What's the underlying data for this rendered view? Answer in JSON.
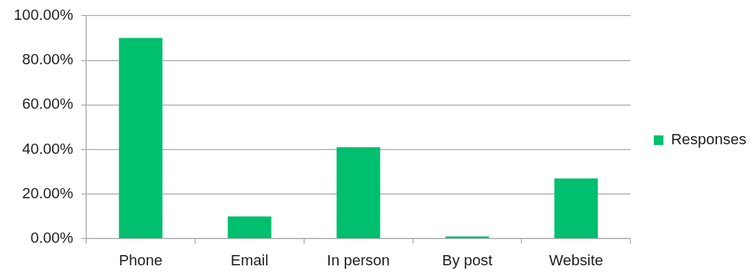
{
  "chart_data": {
    "type": "bar",
    "categories": [
      "Phone",
      "Email",
      "In person",
      "By post",
      "Website"
    ],
    "series": [
      {
        "name": "Responses",
        "color": "#00bf6f",
        "values": [
          90,
          10,
          41,
          1,
          27
        ]
      }
    ],
    "ylim": [
      0,
      100
    ],
    "yticks": [
      {
        "value": 0,
        "label": "0.00%"
      },
      {
        "value": 20,
        "label": "20.00%"
      },
      {
        "value": 40,
        "label": "40.00%"
      },
      {
        "value": 60,
        "label": "60.00%"
      },
      {
        "value": 80,
        "label": "80.00%"
      },
      {
        "value": 100,
        "label": "100.00%"
      }
    ],
    "grid": "y",
    "legend": "right"
  }
}
